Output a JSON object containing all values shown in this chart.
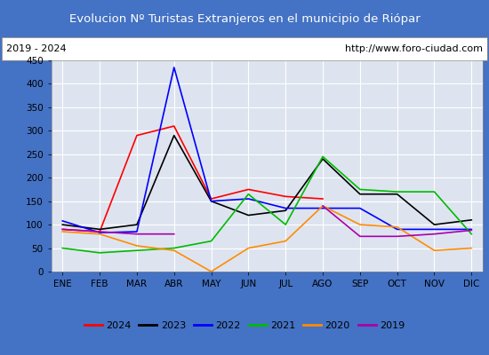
{
  "title": "Evolucion Nº Turistas Extranjeros en el municipio de Riópar",
  "subtitle_left": "2019 - 2024",
  "subtitle_right": "http://www.foro-ciudad.com",
  "title_bg_color": "#4472c4",
  "title_text_color": "#ffffff",
  "subtitle_bg_color": "#ffffff",
  "subtitle_text_color": "#000000",
  "plot_bg_color": "#dde4f0",
  "grid_color": "#ffffff",
  "months": [
    "ENE",
    "FEB",
    "MAR",
    "ABR",
    "MAY",
    "JUN",
    "JUL",
    "AGO",
    "SEP",
    "OCT",
    "NOV",
    "DIC"
  ],
  "ylim": [
    0,
    450
  ],
  "yticks": [
    0,
    50,
    100,
    150,
    200,
    250,
    300,
    350,
    400,
    450
  ],
  "series": {
    "2024": {
      "color": "#ff0000",
      "data": [
        90,
        85,
        290,
        310,
        155,
        175,
        160,
        155,
        null,
        null,
        null,
        null
      ]
    },
    "2023": {
      "color": "#000000",
      "data": [
        100,
        90,
        100,
        290,
        150,
        120,
        130,
        240,
        165,
        165,
        100,
        110
      ]
    },
    "2022": {
      "color": "#0000ff",
      "data": [
        108,
        83,
        85,
        435,
        150,
        155,
        135,
        135,
        135,
        90,
        90,
        90
      ]
    },
    "2021": {
      "color": "#00bb00",
      "data": [
        50,
        40,
        45,
        50,
        65,
        165,
        100,
        245,
        175,
        170,
        170,
        80
      ]
    },
    "2020": {
      "color": "#ff8c00",
      "data": [
        85,
        80,
        55,
        45,
        0,
        50,
        65,
        140,
        100,
        95,
        45,
        50
      ]
    },
    "2019": {
      "color": "#aa00aa",
      "data": [
        90,
        85,
        80,
        80,
        null,
        null,
        null,
        140,
        75,
        75,
        80,
        88
      ]
    }
  },
  "legend_order": [
    "2024",
    "2023",
    "2022",
    "2021",
    "2020",
    "2019"
  ],
  "legend_colors": [
    "#ff0000",
    "#000000",
    "#0000ff",
    "#00bb00",
    "#ff8c00",
    "#aa00aa"
  ],
  "border_color": "#4472c4"
}
